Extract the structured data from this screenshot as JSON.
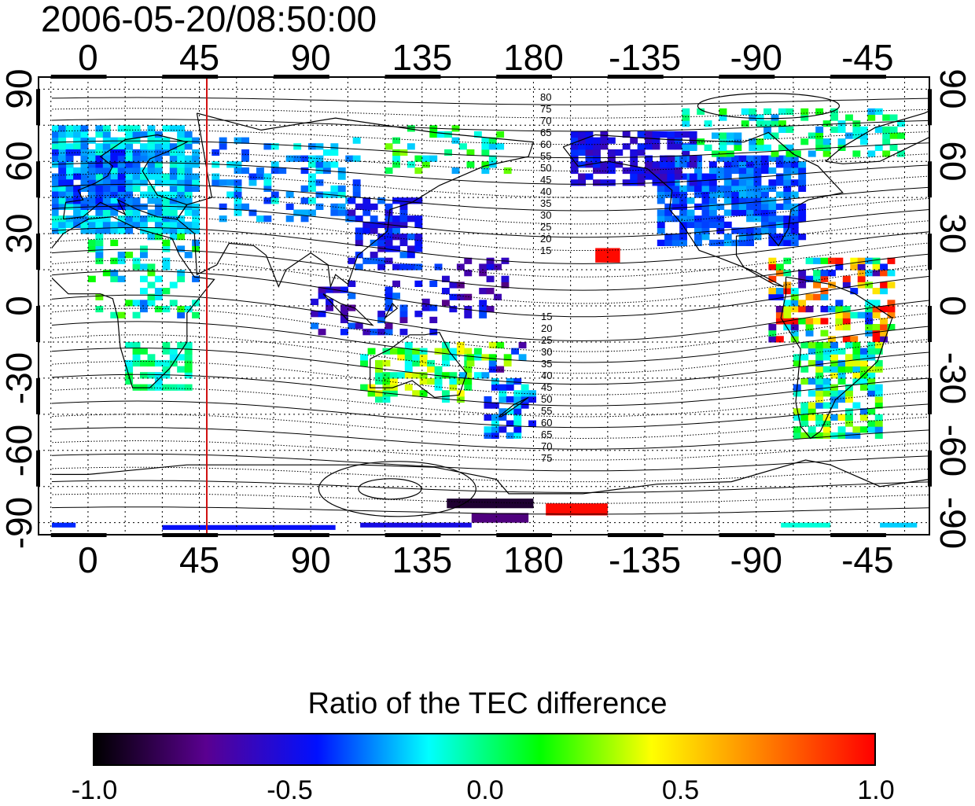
{
  "title": "2006-05-20/08:50:00",
  "top_axis_ticks": [
    "0",
    "45",
    "90",
    "135",
    "180",
    "-135",
    "-90",
    "-45"
  ],
  "bottom_axis_ticks": [
    "0",
    "45",
    "90",
    "135",
    "180",
    "-135",
    "-90",
    "-45"
  ],
  "left_axis_ticks": [
    "90",
    "60",
    "30",
    "0",
    "-30",
    "-60",
    "-90"
  ],
  "right_axis_ticks": [
    "90",
    "60",
    "30",
    "0",
    "-30",
    "-60",
    "-90"
  ],
  "marker_longitude": 48,
  "marker_color": "#d01010",
  "contour_labels_north": [
    "80",
    "75",
    "70",
    "65",
    "60",
    "55",
    "50",
    "45",
    "40",
    "35",
    "30",
    "25",
    "20",
    "15"
  ],
  "contour_labels_south": [
    "15",
    "20",
    "25",
    "30",
    "35",
    "40",
    "45",
    "50",
    "55",
    "60",
    "65",
    "70",
    "75"
  ],
  "colorbar": {
    "title": "Ratio of the TEC difference",
    "min": -1.0,
    "max": 1.0,
    "ticks": [
      "-1.0",
      "-0.5",
      "0.0",
      "0.5",
      "1.0"
    ],
    "colors": [
      "#000000",
      "#5a0090",
      "#0010ff",
      "#00ffff",
      "#00ff00",
      "#ffff00",
      "#ff8000",
      "#ff0000"
    ]
  },
  "map_extent": {
    "lon_min": -20,
    "lon_max": 340,
    "lat_min": -95,
    "lat_max": 95
  }
}
